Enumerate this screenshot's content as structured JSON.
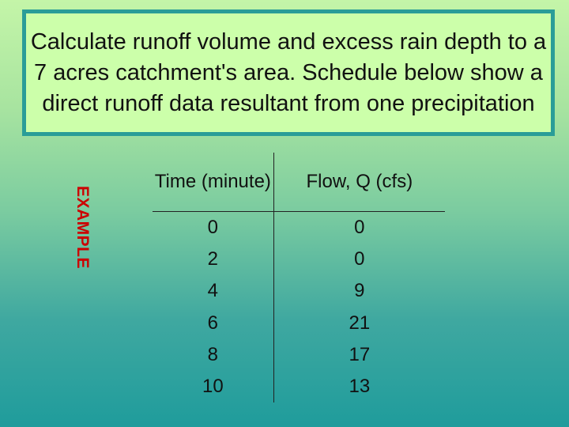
{
  "title": {
    "text": "Calculate runoff volume and excess rain depth to a 7 acres catchment's area. Schedule below show a direct runoff data resultant from one precipitation"
  },
  "side_label": "EXAMPLE",
  "table": {
    "headers": {
      "time": "Time (minute)",
      "flow": "Flow, Q (cfs)"
    },
    "rows": [
      {
        "time": "0",
        "flow": "0"
      },
      {
        "time": "2",
        "flow": "0"
      },
      {
        "time": "4",
        "flow": "9"
      },
      {
        "time": "6",
        "flow": "21"
      },
      {
        "time": "8",
        "flow": "17"
      },
      {
        "time": "10",
        "flow": "13"
      }
    ]
  },
  "colors": {
    "title_box_bg": "#ccffaa",
    "title_box_border": "#2a9d98",
    "side_label": "#cc0000"
  }
}
